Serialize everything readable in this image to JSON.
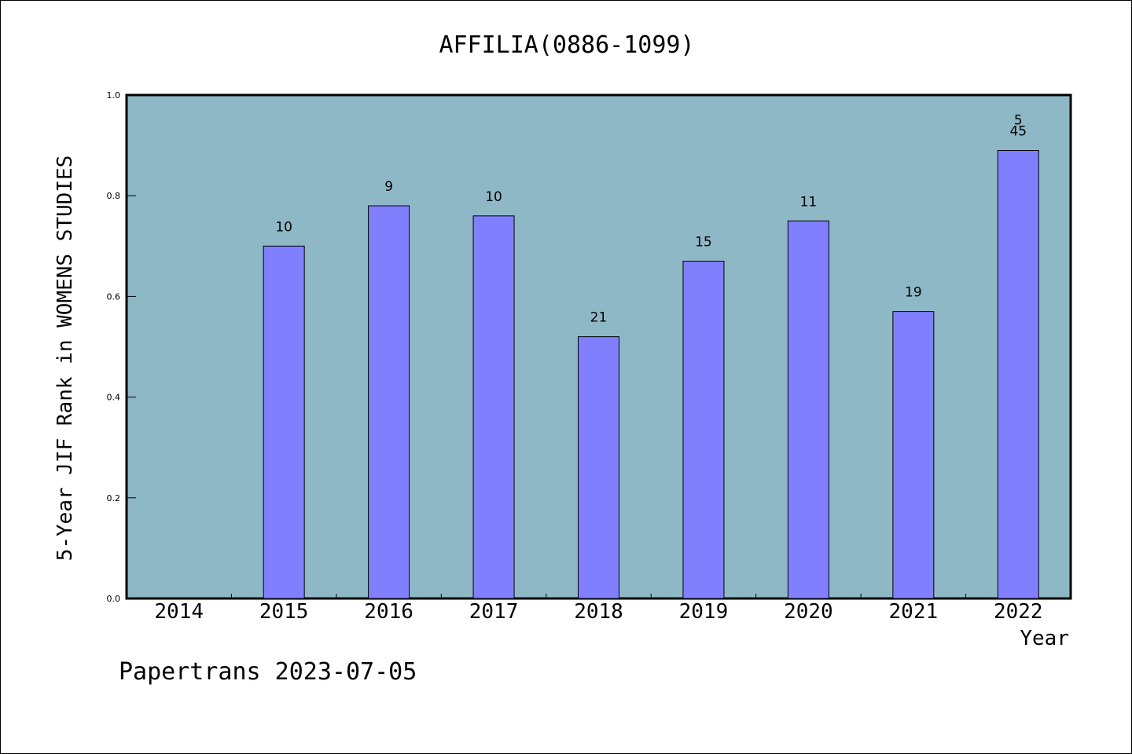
{
  "chart_data": {
    "type": "bar",
    "title": "AFFILIA(0886-1099)",
    "xlabel": "Year",
    "ylabel": "5-Year JIF Rank in WOMENS STUDIES",
    "ylim": [
      0,
      1.0
    ],
    "y_ticks": [
      "0.0",
      "0.2",
      "0.4",
      "0.6",
      "0.8",
      "1.0"
    ],
    "categories": [
      "2014",
      "2015",
      "2016",
      "2017",
      "2018",
      "2019",
      "2020",
      "2021",
      "2022"
    ],
    "values": [
      null,
      0.7,
      0.78,
      0.76,
      0.52,
      0.67,
      0.75,
      0.57,
      0.89
    ],
    "data_labels": [
      "",
      "10",
      "9",
      "10",
      "21",
      "15",
      "11",
      "19",
      "5\n45"
    ],
    "grid": false,
    "legend": "none"
  },
  "footer": "Papertrans 2023-07-05",
  "colors": {
    "plot_background": "#8fb8c6",
    "bar_fill": "#8080ff",
    "bar_stroke": "#000000",
    "page_background": "#ffffff"
  }
}
